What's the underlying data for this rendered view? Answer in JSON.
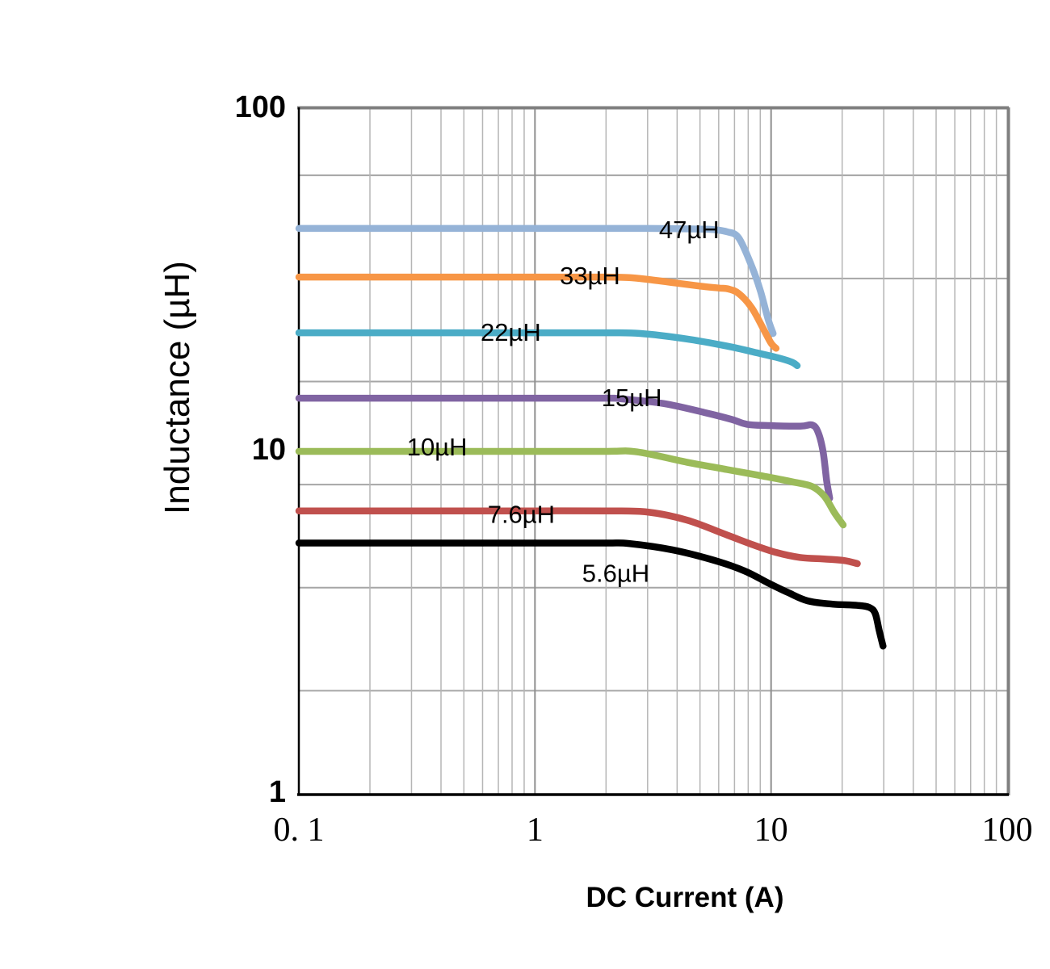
{
  "chart_data": {
    "type": "line",
    "title": "",
    "xlabel": "DC Current (A)",
    "ylabel": "Inductance (µH)",
    "x_scale": "log",
    "y_scale": "log",
    "xlim": [
      0.1,
      100
    ],
    "ylim": [
      1,
      100
    ],
    "grid": true,
    "legend": "inline-labels",
    "x_ticks": [
      {
        "value": 0.1,
        "label": "0. 1"
      },
      {
        "value": 1,
        "label": "1"
      },
      {
        "value": 10,
        "label": "10"
      },
      {
        "value": 100,
        "label": "100"
      }
    ],
    "y_ticks": [
      {
        "value": 1,
        "label": "1"
      },
      {
        "value": 10,
        "label": "10"
      },
      {
        "value": 100,
        "label": "100"
      }
    ],
    "x_gridlines_minor": [
      0.2,
      0.3,
      0.4,
      0.5,
      0.6,
      0.7,
      0.8,
      0.9,
      2,
      3,
      4,
      5,
      6,
      7,
      8,
      9,
      20,
      30,
      40,
      50,
      60,
      70,
      80,
      90
    ],
    "x_gridlines_major": [
      1,
      10
    ],
    "y_gridlines": [
      2,
      4,
      8,
      10,
      16,
      32,
      64
    ],
    "series": [
      {
        "name": "47µH",
        "color": "#95B3D7",
        "label": "47µH",
        "label_at": [
          4.5,
          44.4
        ],
        "points": [
          [
            0.1,
            44.8
          ],
          [
            0.5,
            44.8
          ],
          [
            1,
            44.8
          ],
          [
            2,
            44.8
          ],
          [
            3,
            44.8
          ],
          [
            4,
            44.7
          ],
          [
            5,
            44.6
          ],
          [
            5.6,
            44.5
          ],
          [
            6.5,
            43.8
          ],
          [
            7.3,
            42.0
          ],
          [
            8.3,
            34.6
          ],
          [
            9.0,
            29.5
          ],
          [
            9.7,
            24.4
          ],
          [
            10.2,
            22.1
          ]
        ]
      },
      {
        "name": "33µH",
        "color": "#F79646",
        "label": "33µH",
        "label_at": [
          1.71,
          32.6
        ],
        "points": [
          [
            0.1,
            32.3
          ],
          [
            0.5,
            32.3
          ],
          [
            1,
            32.3
          ],
          [
            2,
            32.3
          ],
          [
            2.5,
            32.2
          ],
          [
            3,
            31.8
          ],
          [
            4,
            31.0
          ],
          [
            5,
            30.4
          ],
          [
            6,
            30.0
          ],
          [
            6.6,
            29.8
          ],
          [
            7.3,
            28.9
          ],
          [
            8.3,
            26.2
          ],
          [
            9.3,
            22.7
          ],
          [
            10,
            20.7
          ],
          [
            10.5,
            20.0
          ]
        ]
      },
      {
        "name": "22µH",
        "color": "#4BACC6",
        "label": "22µH",
        "label_at": [
          0.79,
          22.3
        ],
        "points": [
          [
            0.1,
            22.2
          ],
          [
            0.5,
            22.2
          ],
          [
            1,
            22.2
          ],
          [
            2,
            22.2
          ],
          [
            2.8,
            22.1
          ],
          [
            4.4,
            21.3
          ],
          [
            6.5,
            20.3
          ],
          [
            9,
            19.3
          ],
          [
            10.9,
            18.7
          ],
          [
            12.3,
            18.2
          ],
          [
            12.9,
            17.8
          ]
        ]
      },
      {
        "name": "15µH",
        "color": "#8064A2",
        "label": "15µH",
        "label_at": [
          2.57,
          14.35
        ],
        "points": [
          [
            0.1,
            14.3
          ],
          [
            0.5,
            14.3
          ],
          [
            1,
            14.3
          ],
          [
            2,
            14.3
          ],
          [
            2.3,
            14.25
          ],
          [
            3.5,
            13.8
          ],
          [
            5.2,
            13.0
          ],
          [
            6.8,
            12.4
          ],
          [
            7.9,
            12.0
          ],
          [
            9.7,
            11.9
          ],
          [
            13.3,
            11.85
          ],
          [
            14.9,
            11.95
          ],
          [
            15.8,
            11.4
          ],
          [
            16.6,
            10.0
          ],
          [
            17.2,
            8.2
          ],
          [
            17.7,
            7.3
          ]
        ]
      },
      {
        "name": "10µH",
        "color": "#9BBB59",
        "label": "10µH",
        "label_at": [
          0.385,
          10.3
        ],
        "points": [
          [
            0.1,
            10.0
          ],
          [
            0.5,
            10.0
          ],
          [
            1,
            10.0
          ],
          [
            2,
            10.0
          ],
          [
            2.7,
            9.97
          ],
          [
            4.4,
            9.3
          ],
          [
            6.5,
            8.85
          ],
          [
            9,
            8.5
          ],
          [
            12.3,
            8.15
          ],
          [
            14.9,
            7.9
          ],
          [
            16.8,
            7.4
          ],
          [
            18.6,
            6.6
          ],
          [
            20.2,
            6.1
          ]
        ]
      },
      {
        "name": "7.6µH",
        "color": "#C0504D",
        "label": "7.6µH",
        "label_at": [
          0.875,
          6.55
        ],
        "points": [
          [
            0.1,
            6.7
          ],
          [
            0.5,
            6.7
          ],
          [
            1,
            6.7
          ],
          [
            2,
            6.7
          ],
          [
            3,
            6.65
          ],
          [
            4.4,
            6.3
          ],
          [
            6.5,
            5.7
          ],
          [
            8.3,
            5.35
          ],
          [
            10.5,
            5.07
          ],
          [
            13.3,
            4.9
          ],
          [
            16.8,
            4.85
          ],
          [
            20.4,
            4.8
          ],
          [
            23.2,
            4.7
          ]
        ]
      },
      {
        "name": "5.6µH",
        "color": "#000000",
        "label": "5.6µH",
        "label_at": [
          2.2,
          4.4
        ],
        "points": [
          [
            0.1,
            5.4
          ],
          [
            0.5,
            5.4
          ],
          [
            1,
            5.4
          ],
          [
            2,
            5.4
          ],
          [
            2.5,
            5.38
          ],
          [
            3.8,
            5.16
          ],
          [
            5.6,
            4.83
          ],
          [
            7.7,
            4.48
          ],
          [
            9.7,
            4.13
          ],
          [
            11.8,
            3.87
          ],
          [
            14.3,
            3.66
          ],
          [
            18.2,
            3.58
          ],
          [
            23.2,
            3.55
          ],
          [
            26.1,
            3.5
          ],
          [
            27.6,
            3.36
          ],
          [
            28.7,
            3.0
          ],
          [
            29.8,
            2.7
          ]
        ]
      }
    ]
  },
  "style": {
    "grid_minor_color": "#b5b5b5",
    "grid_major_color": "#8f8f8f",
    "grid_horizontal_color": "#a6a6a6",
    "axis_left_bottom_color": "#000000",
    "axis_top_right_color": "#7f7f7f",
    "text_color": "#000000"
  }
}
